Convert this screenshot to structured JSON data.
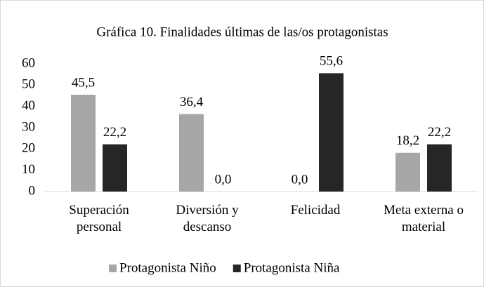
{
  "chart_data": {
    "type": "bar",
    "title": "Gráfica 10. Finalidades últimas de las/os protagonistas",
    "categories": [
      "Superación personal",
      "Diversión y descanso",
      "Felicidad",
      "Meta externa o material"
    ],
    "series": [
      {
        "name": "Protagonista Niño",
        "color": "#a6a6a6",
        "values": [
          45.5,
          36.4,
          0,
          18.2
        ],
        "value_labels": [
          "45,5",
          "36,4",
          "0,0",
          "18,2"
        ]
      },
      {
        "name": "Protagonista Niña",
        "color": "#262626",
        "values": [
          22.2,
          0,
          55.6,
          22.2
        ],
        "value_labels": [
          "22,2",
          "0,0",
          "55,6",
          "22,2"
        ]
      }
    ],
    "ylim": [
      0,
      60
    ],
    "yticks": [
      0,
      10,
      20,
      30,
      40,
      50,
      60
    ],
    "grid": false,
    "legend": "bottom"
  }
}
